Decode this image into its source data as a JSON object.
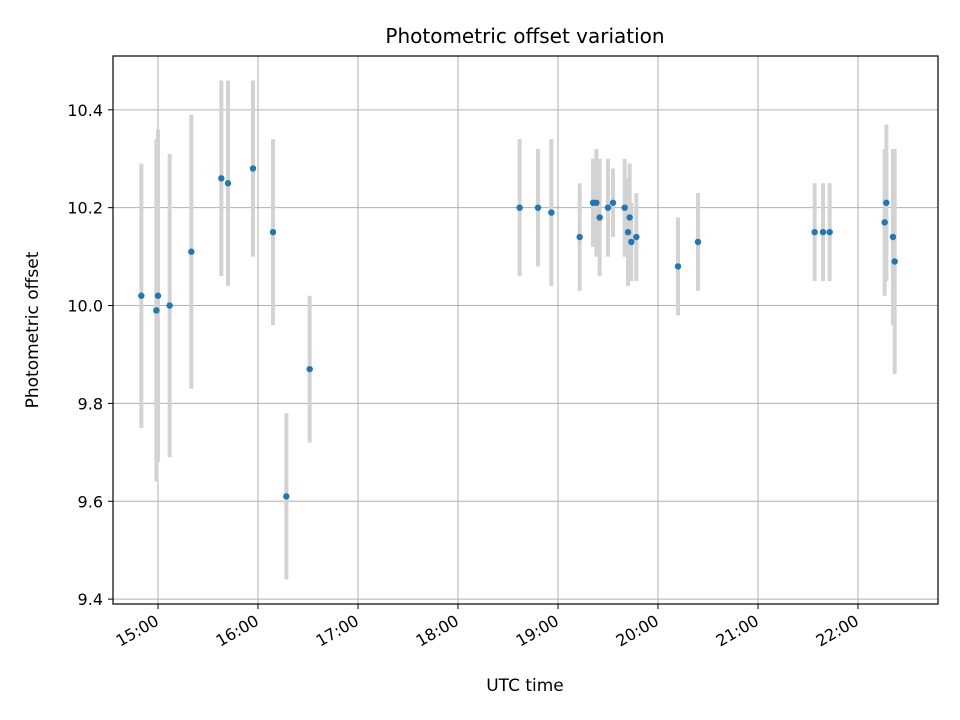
{
  "chart_data": {
    "type": "scatter",
    "title": "Photometric offset variation",
    "xlabel": "UTC time",
    "ylabel": "Photometric offset",
    "x_ticks": [
      "15:00",
      "16:00",
      "17:00",
      "18:00",
      "19:00",
      "20:00",
      "21:00",
      "22:00"
    ],
    "y_ticks": [
      "9.4",
      "9.6",
      "9.8",
      "10.0",
      "10.2",
      "10.4"
    ],
    "xlim": [
      "14:33",
      "22:48"
    ],
    "ylim": [
      9.39,
      10.51
    ],
    "grid": true,
    "marker_color": "#1f77b4",
    "errorbar_color": "#d3d3d3",
    "series": [
      {
        "x": [
          "14:50",
          "14:59",
          "15:00",
          "15:07",
          "15:20",
          "15:38",
          "15:42",
          "15:57",
          "16:09",
          "16:17",
          "16:31",
          "18:37",
          "18:48",
          "18:56",
          "19:13",
          "19:21",
          "19:23",
          "19:25",
          "19:30",
          "19:33",
          "19:40",
          "19:42",
          "19:43",
          "19:44",
          "19:47",
          "20:12",
          "20:24",
          "21:34",
          "21:39",
          "21:43",
          "22:16",
          "22:17",
          "22:21",
          "22:22"
        ],
        "y": [
          10.02,
          9.99,
          10.02,
          10.0,
          10.11,
          10.26,
          10.25,
          10.28,
          10.15,
          9.61,
          9.87,
          10.2,
          10.2,
          10.19,
          10.14,
          10.21,
          10.21,
          10.18,
          10.2,
          10.21,
          10.2,
          10.15,
          10.18,
          10.13,
          10.14,
          10.08,
          10.13,
          10.15,
          10.15,
          10.15,
          10.17,
          10.21,
          10.14,
          10.09
        ],
        "err": [
          0.27,
          0.35,
          0.34,
          0.31,
          0.28,
          0.2,
          0.21,
          0.18,
          0.19,
          0.17,
          0.15,
          0.14,
          0.12,
          0.15,
          0.11,
          0.09,
          0.11,
          0.12,
          0.1,
          0.07,
          0.1,
          0.11,
          0.11,
          0.08,
          0.09,
          0.1,
          0.1,
          0.1,
          0.1,
          0.1,
          0.15,
          0.16,
          0.18,
          0.23
        ]
      }
    ]
  }
}
